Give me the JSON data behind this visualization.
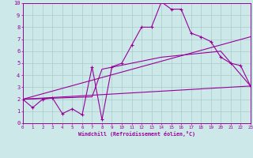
{
  "xlabel": "Windchill (Refroidissement éolien,°C)",
  "bg_color": "#cce8e8",
  "grid_color": "#aacccc",
  "line_color": "#990099",
  "xlim": [
    0,
    23
  ],
  "ylim": [
    0,
    10
  ],
  "xticks": [
    0,
    1,
    2,
    3,
    4,
    5,
    6,
    7,
    8,
    9,
    10,
    11,
    12,
    13,
    14,
    15,
    16,
    17,
    18,
    19,
    20,
    21,
    22,
    23
  ],
  "yticks": [
    0,
    1,
    2,
    3,
    4,
    5,
    6,
    7,
    8,
    9,
    10
  ],
  "line1_x": [
    0,
    1,
    2,
    3,
    4,
    5,
    6,
    7,
    8,
    9,
    10,
    11,
    12,
    13,
    14,
    15,
    16,
    17,
    18,
    19,
    20,
    21,
    22,
    23
  ],
  "line1_y": [
    2.0,
    1.3,
    2.0,
    2.1,
    0.8,
    1.2,
    0.7,
    4.7,
    0.3,
    4.7,
    5.0,
    6.5,
    8.0,
    8.0,
    10.1,
    9.5,
    9.5,
    7.5,
    7.2,
    6.8,
    5.5,
    5.0,
    4.8,
    3.1
  ],
  "line2_x": [
    0,
    23
  ],
  "line2_y": [
    2.0,
    7.2
  ],
  "line3_x": [
    0,
    23
  ],
  "line3_y": [
    2.0,
    3.1
  ],
  "line4_x": [
    0,
    7,
    8,
    14,
    20,
    23
  ],
  "line4_y": [
    2.0,
    2.2,
    4.5,
    5.5,
    6.0,
    3.1
  ]
}
